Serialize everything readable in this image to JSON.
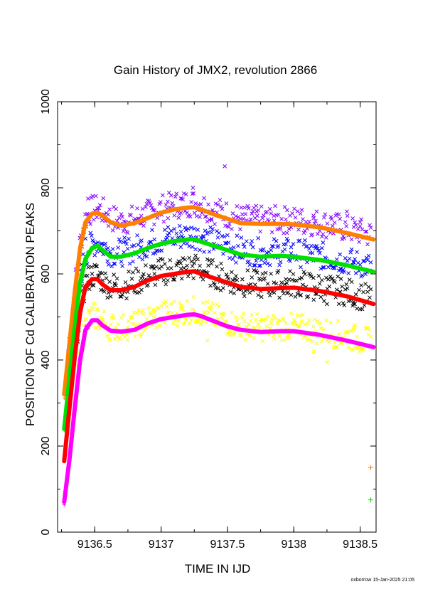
{
  "chart_data": {
    "type": "scatter",
    "title": "Gain History of JMX2, revolution 2866",
    "xlabel": "TIME IN IJD",
    "ylabel": "POSITION OF Cd CALIBRATION PEAKS",
    "xlim": [
      9136.22,
      9138.62
    ],
    "ylim": [
      0,
      1000
    ],
    "x_ticks": [
      9136.5,
      9137,
      9137.5,
      9138,
      9138.5
    ],
    "x_tick_labels": [
      "9136.5",
      "9137",
      "9137.5",
      "9138",
      "9138.5"
    ],
    "y_ticks": [
      0,
      200,
      400,
      600,
      800,
      1000
    ],
    "y_tick_labels": [
      "0",
      "200",
      "400",
      "600",
      "800",
      "1000"
    ],
    "grid": false,
    "footer": "oxborrow 15-Jan-2025 21:05",
    "series": [
      {
        "color": "#ff8000",
        "kind": "fit",
        "x": [
          9136.27,
          9136.31,
          9136.35,
          9136.39,
          9136.43,
          9136.48,
          9136.52,
          9136.56,
          9136.62,
          9136.7,
          9136.8,
          9136.9,
          9137.0,
          9137.1,
          9137.2,
          9137.25,
          9137.3,
          9137.4,
          9137.5,
          9137.6,
          9137.75,
          9137.9,
          9138.0,
          9138.2,
          9138.4,
          9138.6
        ],
        "y": [
          320,
          440,
          560,
          660,
          720,
          740,
          742,
          735,
          720,
          712,
          718,
          730,
          742,
          750,
          754,
          755,
          750,
          738,
          728,
          718,
          716,
          716,
          715,
          708,
          695,
          680
        ]
      },
      {
        "color": "#00e000",
        "kind": "fit",
        "x": [
          9136.27,
          9136.31,
          9136.35,
          9136.39,
          9136.43,
          9136.48,
          9136.52,
          9136.56,
          9136.62,
          9136.7,
          9136.8,
          9136.9,
          9137.0,
          9137.1,
          9137.2,
          9137.25,
          9137.3,
          9137.4,
          9137.5,
          9137.6,
          9137.75,
          9137.9,
          9138.0,
          9138.2,
          9138.4,
          9138.6
        ],
        "y": [
          240,
          360,
          480,
          580,
          635,
          660,
          665,
          655,
          640,
          640,
          648,
          660,
          670,
          676,
          680,
          681,
          675,
          665,
          655,
          645,
          640,
          642,
          640,
          632,
          620,
          605
        ]
      },
      {
        "color": "#ff0000",
        "kind": "fit",
        "x": [
          9136.27,
          9136.31,
          9136.35,
          9136.39,
          9136.43,
          9136.48,
          9136.52,
          9136.56,
          9136.62,
          9136.7,
          9136.8,
          9136.9,
          9137.0,
          9137.1,
          9137.2,
          9137.25,
          9137.3,
          9137.4,
          9137.5,
          9137.6,
          9137.75,
          9137.9,
          9138.0,
          9138.2,
          9138.4,
          9138.6
        ],
        "y": [
          165,
          290,
          410,
          510,
          570,
          588,
          588,
          575,
          562,
          562,
          570,
          585,
          595,
          600,
          605,
          606,
          600,
          590,
          580,
          570,
          565,
          567,
          568,
          560,
          548,
          530
        ]
      },
      {
        "color": "#ff00ff",
        "kind": "fit",
        "x": [
          9136.27,
          9136.31,
          9136.35,
          9136.39,
          9136.43,
          9136.48,
          9136.52,
          9136.56,
          9136.62,
          9136.7,
          9136.8,
          9136.9,
          9137.0,
          9137.1,
          9137.2,
          9137.25,
          9137.3,
          9137.4,
          9137.5,
          9137.6,
          9137.75,
          9137.9,
          9138.0,
          9138.2,
          9138.4,
          9138.6
        ],
        "y": [
          70,
          170,
          290,
          400,
          470,
          492,
          492,
          480,
          468,
          466,
          470,
          485,
          495,
          500,
          505,
          506,
          502,
          490,
          478,
          470,
          465,
          467,
          467,
          458,
          445,
          430
        ]
      },
      {
        "color": "#8000ff",
        "kind": "points",
        "x": [
          9136.45,
          9136.52,
          9136.6,
          9136.72,
          9136.85,
          9136.95,
          9137.05,
          9137.15,
          9137.24,
          9137.3,
          9137.38,
          9137.48,
          9137.6,
          9137.72,
          9137.85,
          9137.95,
          9138.05,
          9138.15,
          9138.28,
          9138.4,
          9138.5
        ],
        "y": [
          775,
          752,
          738,
          722,
          735,
          748,
          768,
          742,
          800,
          762,
          728,
          850,
          728,
          745,
          735,
          748,
          740,
          730,
          732,
          745,
          720
        ]
      },
      {
        "color": "#0000ff",
        "kind": "points",
        "x": [
          9136.43,
          9136.5,
          9136.6,
          9136.72,
          9136.85,
          9136.95,
          9137.05,
          9137.15,
          9137.25,
          9137.32,
          9137.4,
          9137.5,
          9137.62,
          9137.75,
          9137.88,
          9137.98,
          9138.1,
          9138.22,
          9138.35,
          9138.45,
          9138.55
        ],
        "y": [
          682,
          665,
          660,
          650,
          662,
          680,
          690,
          698,
          705,
          688,
          670,
          690,
          640,
          655,
          638,
          648,
          665,
          615,
          612,
          628,
          604
        ]
      },
      {
        "color": "#000000",
        "kind": "points",
        "x": [
          9136.4,
          9136.48,
          9136.56,
          9136.65,
          9136.75,
          9136.85,
          9136.95,
          9137.05,
          9137.15,
          9137.25,
          9137.35,
          9137.45,
          9137.55,
          9137.65,
          9137.75,
          9137.85,
          9137.95,
          9138.05,
          9138.15,
          9138.25,
          9138.35,
          9138.45,
          9138.55
        ],
        "y": [
          622,
          600,
          585,
          578,
          572,
          590,
          600,
          585,
          612,
          625,
          602,
          562,
          555,
          565,
          560,
          580,
          555,
          550,
          540,
          530,
          558,
          530,
          535
        ]
      },
      {
        "color": "#ffff00",
        "kind": "points",
        "x": [
          9136.36,
          9136.46,
          9136.55,
          9136.65,
          9136.75,
          9136.85,
          9136.95,
          9137.05,
          9137.15,
          9137.25,
          9137.35,
          9137.45,
          9137.55,
          9137.65,
          9137.75,
          9137.85,
          9137.95,
          9138.05,
          9138.15,
          9138.25,
          9138.35,
          9138.45
        ],
        "y": [
          520,
          515,
          482,
          465,
          475,
          460,
          500,
          510,
          525,
          515,
          445,
          480,
          472,
          460,
          465,
          458,
          470,
          460,
          420,
          395,
          440,
          470
        ]
      },
      {
        "color": "#ff8000",
        "kind": "outlier",
        "x": [
          9138.58
        ],
        "y": [
          150
        ]
      },
      {
        "color": "#00e000",
        "kind": "outlier",
        "x": [
          9138.58
        ],
        "y": [
          75
        ]
      }
    ]
  }
}
